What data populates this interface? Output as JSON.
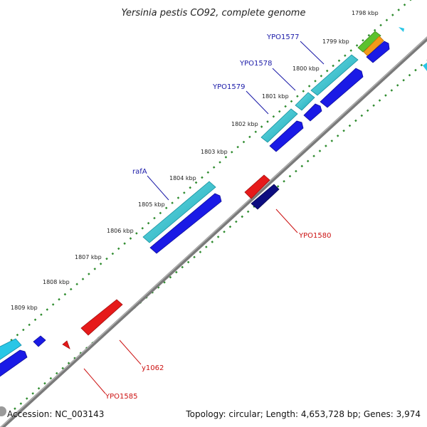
{
  "map": {
    "title": "Yersinia pestis CO92, complete genome",
    "accession": "Accession: NC_003143",
    "summary": "Topology: circular; Length: 4,653,728 bp; Genes: 3,974"
  },
  "ticks": [
    {
      "label": "1798 kbp"
    },
    {
      "label": "1799 kbp"
    },
    {
      "label": "1800 kbp"
    },
    {
      "label": "1801 kbp"
    },
    {
      "label": "1802 kbp"
    },
    {
      "label": "1803 kbp"
    },
    {
      "label": "1804 kbp"
    },
    {
      "label": "1805 kbp"
    },
    {
      "label": "1806 kbp"
    },
    {
      "label": "1807 kbp"
    },
    {
      "label": "1808 kbp"
    },
    {
      "label": "1809 kbp"
    }
  ],
  "gene_labels": {
    "YPO1577": "YPO1577",
    "YPO1578": "YPO1578",
    "YPO1579": "YPO1579",
    "rafA": "rafA",
    "YPO1580": "YPO1580",
    "y1062": "y1062",
    "YPO1585": "YPO1585"
  },
  "colors": {
    "backbone": "#888888",
    "forward_gene": "#1a1ae6",
    "forward_cds": "#22bcc8",
    "reverse_gene": "#e61a1a",
    "reverse_dark": "#0d0d80",
    "dots": "#2e8b2e"
  }
}
